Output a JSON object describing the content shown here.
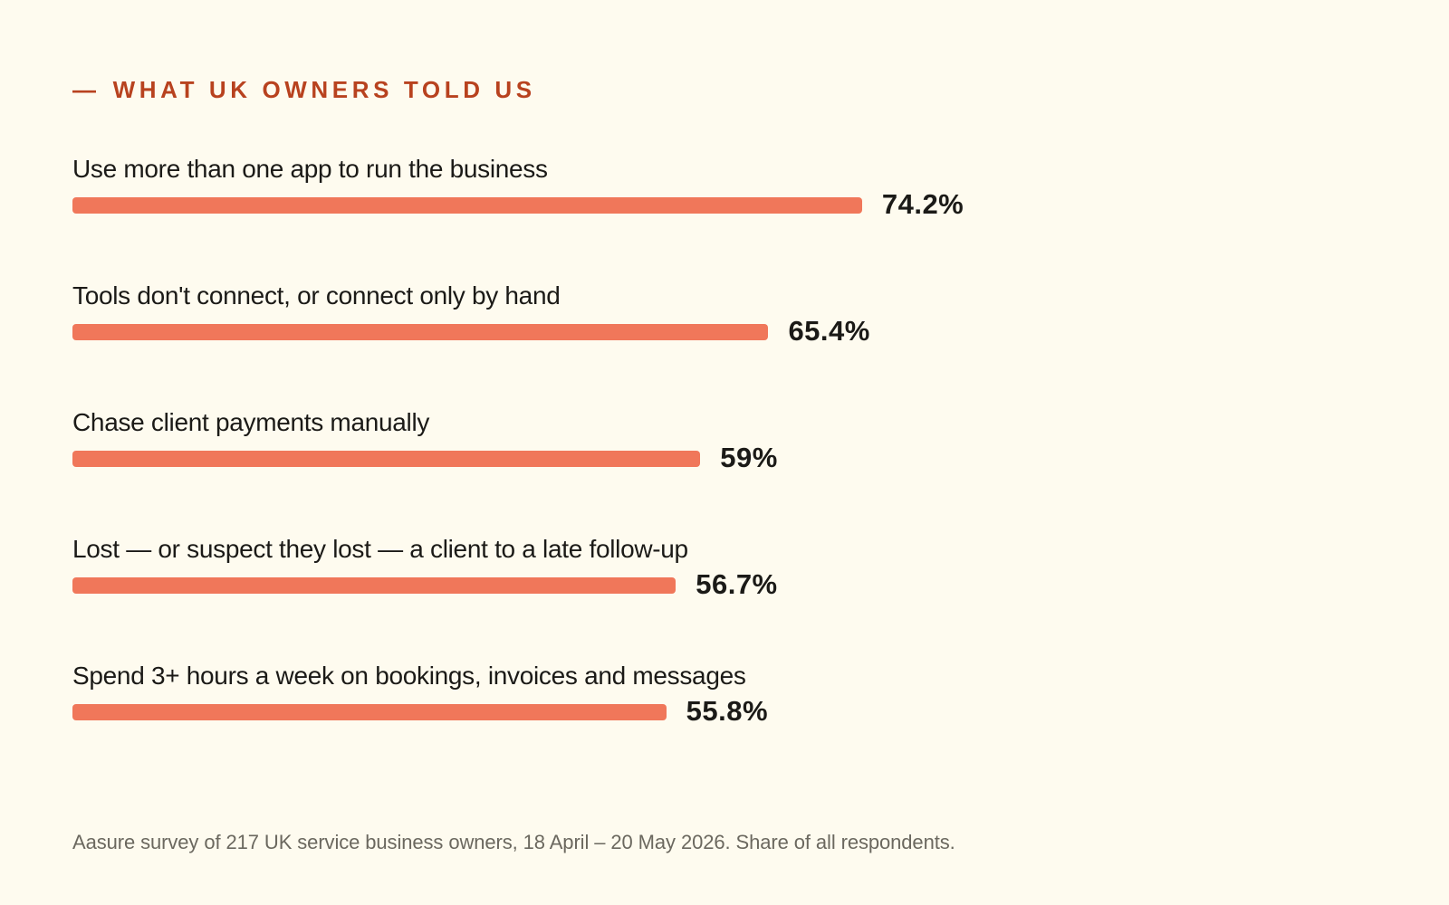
{
  "eyebrow": {
    "dash": "—",
    "text": "WHAT UK OWNERS TOLD US"
  },
  "colors": {
    "background": "#fefbef",
    "accent": "#b8421f",
    "bar": "#f0775a",
    "text": "#1b1a17",
    "muted": "#6b685f"
  },
  "chart_data": {
    "type": "bar",
    "orientation": "horizontal",
    "categories": [
      "Use more than one app to run the business",
      "Tools don't connect, or connect only by hand",
      "Chase client payments manually",
      "Lost — or suspect they lost — a client to a late follow-up",
      "Spend 3+ hours a week on bookings, invoices and messages"
    ],
    "values": [
      74.2,
      65.4,
      59,
      56.7,
      55.8
    ],
    "value_labels": [
      "74.2%",
      "65.4%",
      "59%",
      "56.7%",
      "55.8%"
    ],
    "unit": "%",
    "xlim": [
      0,
      100
    ],
    "grid": false,
    "legend": "none"
  },
  "footnote": "Aasure survey of 217 UK service business owners, 18 April – 20 May 2026. Share of all respondents."
}
